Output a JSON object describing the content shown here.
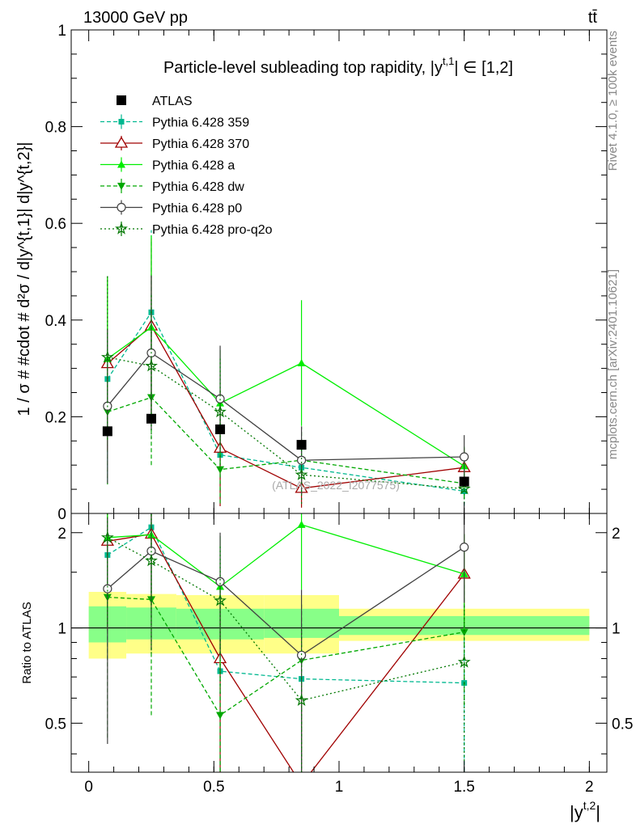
{
  "header": {
    "left_label": "13000 GeV pp",
    "right_label": "tt̄"
  },
  "side_labels": {
    "rivet": "Rivet 4.1.0, ≥ 100k events",
    "mcplots": "mcplots.cern.ch [arXiv:2401.10621]"
  },
  "watermark": "(ATLAS_2022_I2077575)",
  "colors": {
    "atlas": "#000000",
    "p359": "#00b890",
    "p370": "#a00000",
    "pa": "#00ee00",
    "pdw": "#00a800",
    "pp0": "#404040",
    "pq2o": "#007700",
    "band_syst": "#ffff88",
    "band_stat": "#88ff88"
  },
  "chart_data": [
    {
      "panel": "main",
      "type": "scatter",
      "title": "Particle-level subleading top rapidity, |y^{t,1}| ∈ [1,2]",
      "title_text": "Particle-level subleading top rapidity, |y",
      "title_sup": "t,1",
      "title_tail": "| ∈ [1,2]",
      "ylabel": "1 / σ # #cdot # d²σ / d|y^{t,1}| d|y^{t,2}|",
      "ylim": [
        0,
        1
      ],
      "y_ticks": [
        0,
        0.2,
        0.4,
        0.6,
        0.8,
        1
      ],
      "y_tick_labels": [
        "0",
        "0.2",
        "0.4",
        "0.6",
        "0.8",
        "1"
      ],
      "x_edges": [
        0,
        0.15,
        0.35,
        0.7,
        1.0,
        2.0
      ],
      "x": [
        0.075,
        0.25,
        0.525,
        0.85,
        1.5
      ],
      "series": [
        {
          "key": "atlas",
          "name": "ATLAS",
          "values": [
            0.17,
            0.196,
            0.174,
            0.142,
            0.066
          ],
          "err": [
            0.0,
            0.0,
            0.0,
            0.0,
            0.0
          ]
        },
        {
          "key": "p359",
          "name": "Pythia 6.428 359",
          "values": [
            0.278,
            0.416,
            0.121,
            0.095,
            0.046
          ],
          "err": [
            0.21,
            0.17,
            0.09,
            0.05,
            0.03
          ]
        },
        {
          "key": "p370",
          "name": "Pythia 6.428 370",
          "values": [
            0.31,
            0.388,
            0.135,
            0.052,
            0.095
          ],
          "err": [
            0.18,
            0.18,
            0.12,
            0.04,
            0.04
          ]
        },
        {
          "key": "pa",
          "name": "Pythia 6.428 a",
          "values": [
            0.32,
            0.385,
            0.228,
            0.311,
            0.098
          ],
          "err": [
            0.17,
            0.19,
            0.11,
            0.13,
            0.04
          ]
        },
        {
          "key": "pdw",
          "name": "Pythia 6.428 dw",
          "values": [
            0.21,
            0.24,
            0.091,
            0.11,
            0.062
          ],
          "err": [
            0.15,
            0.14,
            0.07,
            0.07,
            0.03
          ]
        },
        {
          "key": "pp0",
          "name": "Pythia 6.428 p0",
          "values": [
            0.222,
            0.332,
            0.237,
            0.11,
            0.117
          ],
          "err": [
            0.16,
            0.16,
            0.11,
            0.07,
            0.045
          ]
        },
        {
          "key": "pq2o",
          "name": "Pythia 6.428 pro-q2o",
          "values": [
            0.323,
            0.305,
            0.21,
            0.08,
            0.051
          ],
          "err": [
            0.17,
            0.15,
            0.11,
            0.06,
            0.03
          ]
        }
      ]
    },
    {
      "panel": "ratio",
      "type": "scatter",
      "ylabel": "Ratio to ATLAS",
      "xlabel": "|y^{t,2}|",
      "xlabel_text": "|y",
      "xlabel_sup": "t,2",
      "xlabel_tail": "|",
      "xlim": [
        -0.07,
        2.07
      ],
      "ylim": [
        0.35,
        2.3
      ],
      "y_ticks": [
        0.5,
        1,
        2
      ],
      "y_tick_labels": [
        "0.5",
        "1",
        "2"
      ],
      "x_ticks": [
        0,
        0.5,
        1,
        1.5,
        2
      ],
      "x_tick_labels": [
        "0",
        "0.5",
        "1",
        "1.5",
        "2"
      ],
      "bands": {
        "x_edges": [
          0,
          0.15,
          0.35,
          0.7,
          1.0,
          2.0
        ],
        "syst_lo": [
          0.8,
          0.83,
          0.83,
          0.83,
          0.91
        ],
        "syst_hi": [
          1.3,
          1.28,
          1.27,
          1.27,
          1.15
        ],
        "stat_lo": [
          0.9,
          0.92,
          0.92,
          0.93,
          0.95
        ],
        "stat_hi": [
          1.17,
          1.16,
          1.15,
          1.15,
          1.09
        ]
      },
      "series": [
        {
          "key": "p359",
          "values": [
            1.7,
            2.08,
            0.73,
            0.69,
            0.67
          ],
          "err": [
            0.9,
            0.8,
            0.5,
            0.35,
            0.35
          ]
        },
        {
          "key": "p370",
          "values": [
            1.88,
            1.98,
            0.8,
            0.32,
            1.48
          ],
          "err": [
            0.9,
            0.8,
            0.6,
            0.35,
            0.5
          ]
        },
        {
          "key": "pa",
          "values": [
            1.93,
            1.97,
            1.35,
            2.12,
            1.48
          ],
          "err": [
            0.9,
            0.9,
            0.6,
            0.8,
            0.5
          ]
        },
        {
          "key": "pdw",
          "values": [
            1.25,
            1.23,
            0.53,
            0.79,
            0.97
          ],
          "err": [
            0.8,
            0.7,
            0.4,
            0.4,
            0.4
          ]
        },
        {
          "key": "pp0",
          "values": [
            1.33,
            1.75,
            1.4,
            0.82,
            1.8
          ],
          "err": [
            0.9,
            0.9,
            0.6,
            0.5,
            0.6
          ]
        },
        {
          "key": "pq2o",
          "values": [
            1.93,
            1.63,
            1.22,
            0.59,
            0.78
          ],
          "err": [
            0.9,
            0.8,
            0.6,
            0.4,
            0.4
          ]
        }
      ]
    }
  ]
}
